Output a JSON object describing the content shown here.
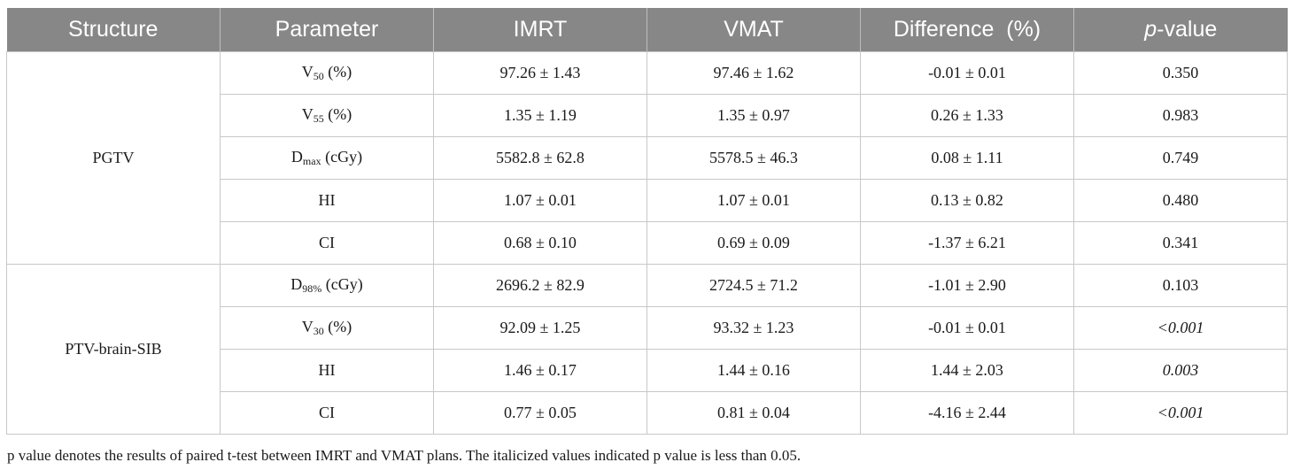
{
  "headers": [
    "Structure",
    "Parameter",
    "IMRT",
    "VMAT",
    "Difference  (%)",
    "-value"
  ],
  "header_p": "p",
  "groups": [
    {
      "structure": "PGTV",
      "rows": [
        {
          "param_main": "V",
          "param_sub": "50",
          "param_unit": " (%)",
          "imrt": "97.26 ± 1.43",
          "vmat": "97.46 ± 1.62",
          "diff": "-0.01 ± 0.01",
          "p": "0.350",
          "p_italic": false
        },
        {
          "param_main": "V",
          "param_sub": "55",
          "param_unit": " (%)",
          "imrt": "1.35 ± 1.19",
          "vmat": "1.35 ± 0.97",
          "diff": "0.26 ± 1.33",
          "p": "0.983",
          "p_italic": false
        },
        {
          "param_main": "D",
          "param_sub": "max",
          "param_unit": " (cGy)",
          "imrt": "5582.8 ± 62.8",
          "vmat": "5578.5 ± 46.3",
          "diff": "0.08 ± 1.11",
          "p": "0.749",
          "p_italic": false
        },
        {
          "param_main": "HI",
          "param_sub": "",
          "param_unit": "",
          "imrt": "1.07 ± 0.01",
          "vmat": "1.07 ± 0.01",
          "diff": "0.13 ± 0.82",
          "p": "0.480",
          "p_italic": false
        },
        {
          "param_main": "CI",
          "param_sub": "",
          "param_unit": "",
          "imrt": "0.68 ± 0.10",
          "vmat": "0.69 ± 0.09",
          "diff": "-1.37 ± 6.21",
          "p": "0.341",
          "p_italic": false
        }
      ]
    },
    {
      "structure": "PTV-brain-SIB",
      "rows": [
        {
          "param_main": "D",
          "param_sub": "98%",
          "param_unit": " (cGy)",
          "imrt": "2696.2 ± 82.9",
          "vmat": "2724.5 ± 71.2",
          "diff": "-1.01 ± 2.90",
          "p": "0.103",
          "p_italic": false
        },
        {
          "param_main": "V",
          "param_sub": "30",
          "param_unit": " (%)",
          "imrt": "92.09 ± 1.25",
          "vmat": "93.32 ± 1.23",
          "diff": "-0.01 ± 0.01",
          "p": "<0.001",
          "p_italic": true
        },
        {
          "param_main": "HI",
          "param_sub": "",
          "param_unit": "",
          "imrt": "1.46 ± 0.17",
          "vmat": "1.44 ± 0.16",
          "diff": "1.44 ± 2.03",
          "p": "0.003",
          "p_italic": true
        },
        {
          "param_main": "CI",
          "param_sub": "",
          "param_unit": "",
          "imrt": "0.77 ± 0.05",
          "vmat": "0.81 ± 0.04",
          "diff": "-4.16 ± 2.44",
          "p": "<0.001",
          "p_italic": true
        }
      ]
    }
  ],
  "footnote": "p value denotes the results of paired t-test between IMRT and VMAT plans. The italicized values indicated p value is less than 0.05.",
  "colors": {
    "header_bg": "#878787",
    "header_text": "#ffffff",
    "border": "#c8c8c8"
  }
}
